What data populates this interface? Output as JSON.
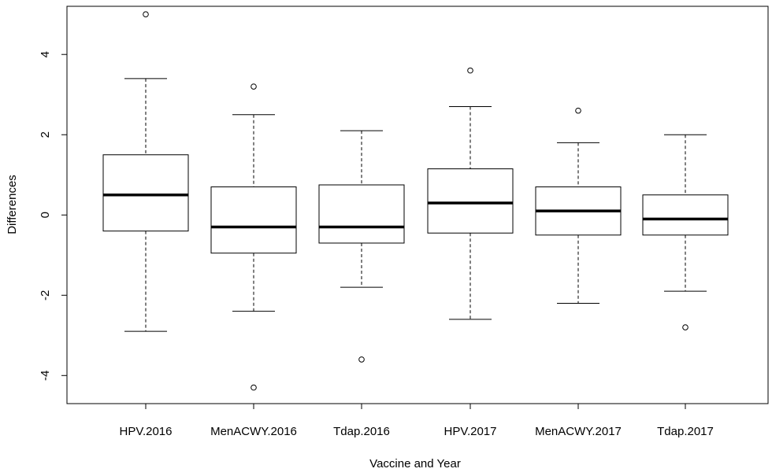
{
  "chart_data": {
    "type": "boxplot",
    "title": "",
    "xlabel": "Vaccine and Year",
    "ylabel": "Differences",
    "ylim": [
      -4.7,
      5.2
    ],
    "yticks": [
      -4,
      -2,
      0,
      2,
      4
    ],
    "categories": [
      "HPV.2016",
      "MenACWY.2016",
      "Tdap.2016",
      "HPV.2017",
      "MenACWY.2017",
      "Tdap.2017"
    ],
    "boxes": [
      {
        "name": "HPV.2016",
        "whisker_low": -2.9,
        "q1": -0.4,
        "median": 0.5,
        "q3": 1.5,
        "whisker_high": 3.4,
        "outliers": [
          5.0
        ]
      },
      {
        "name": "MenACWY.2016",
        "whisker_low": -2.4,
        "q1": -0.95,
        "median": -0.3,
        "q3": 0.7,
        "whisker_high": 2.5,
        "outliers": [
          3.2,
          -4.3
        ]
      },
      {
        "name": "Tdap.2016",
        "whisker_low": -1.8,
        "q1": -0.7,
        "median": -0.3,
        "q3": 0.75,
        "whisker_high": 2.1,
        "outliers": [
          -3.6
        ]
      },
      {
        "name": "HPV.2017",
        "whisker_low": -2.6,
        "q1": -0.45,
        "median": 0.3,
        "q3": 1.15,
        "whisker_high": 2.7,
        "outliers": [
          3.6
        ]
      },
      {
        "name": "MenACWY.2017",
        "whisker_low": -2.2,
        "q1": -0.5,
        "median": 0.1,
        "q3": 0.7,
        "whisker_high": 1.8,
        "outliers": [
          2.6
        ]
      },
      {
        "name": "Tdap.2017",
        "whisker_low": -1.9,
        "q1": -0.5,
        "median": -0.1,
        "q3": 0.5,
        "whisker_high": 2.0,
        "outliers": [
          -2.8
        ]
      }
    ]
  }
}
